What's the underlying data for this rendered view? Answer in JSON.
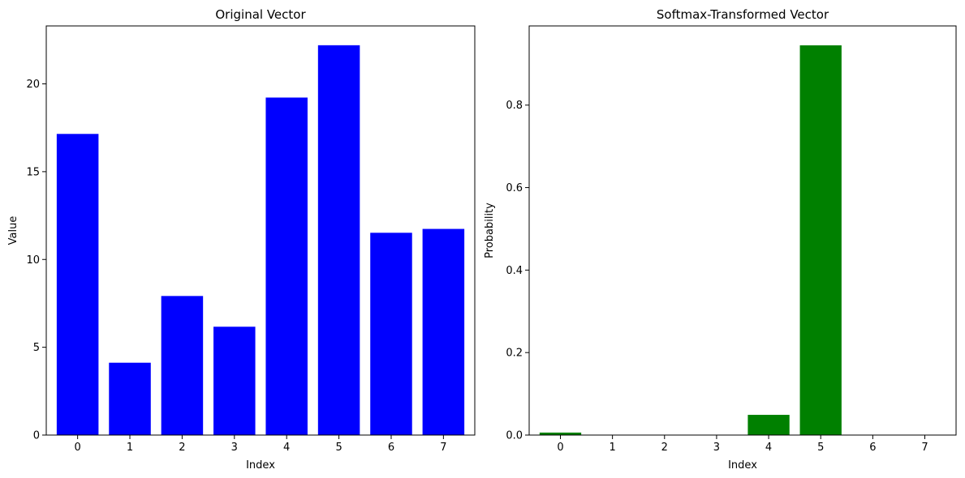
{
  "chart_data": [
    {
      "type": "bar",
      "title": "Original Vector",
      "xlabel": "Index",
      "ylabel": "Value",
      "categories": [
        "0",
        "1",
        "2",
        "3",
        "4",
        "5",
        "6",
        "7"
      ],
      "values": [
        17.15,
        4.12,
        7.92,
        6.17,
        19.22,
        22.2,
        11.52,
        11.74
      ],
      "color": "#0000ff",
      "ylim": [
        0,
        23.3
      ],
      "yticks": [
        0,
        5,
        10,
        15,
        20
      ],
      "grid": false,
      "legend": false
    },
    {
      "type": "bar",
      "title": "Softmax-Transformed Vector",
      "xlabel": "Index",
      "ylabel": "Probability",
      "categories": [
        "0",
        "1",
        "2",
        "3",
        "4",
        "5",
        "6",
        "7"
      ],
      "values": [
        0.006,
        0.0,
        0.0,
        0.0,
        0.049,
        0.945,
        0.0,
        0.0
      ],
      "color": "#008000",
      "ylim": [
        0,
        0.992
      ],
      "yticks": [
        0.0,
        0.2,
        0.4,
        0.6,
        0.8
      ],
      "grid": false,
      "legend": false
    }
  ]
}
